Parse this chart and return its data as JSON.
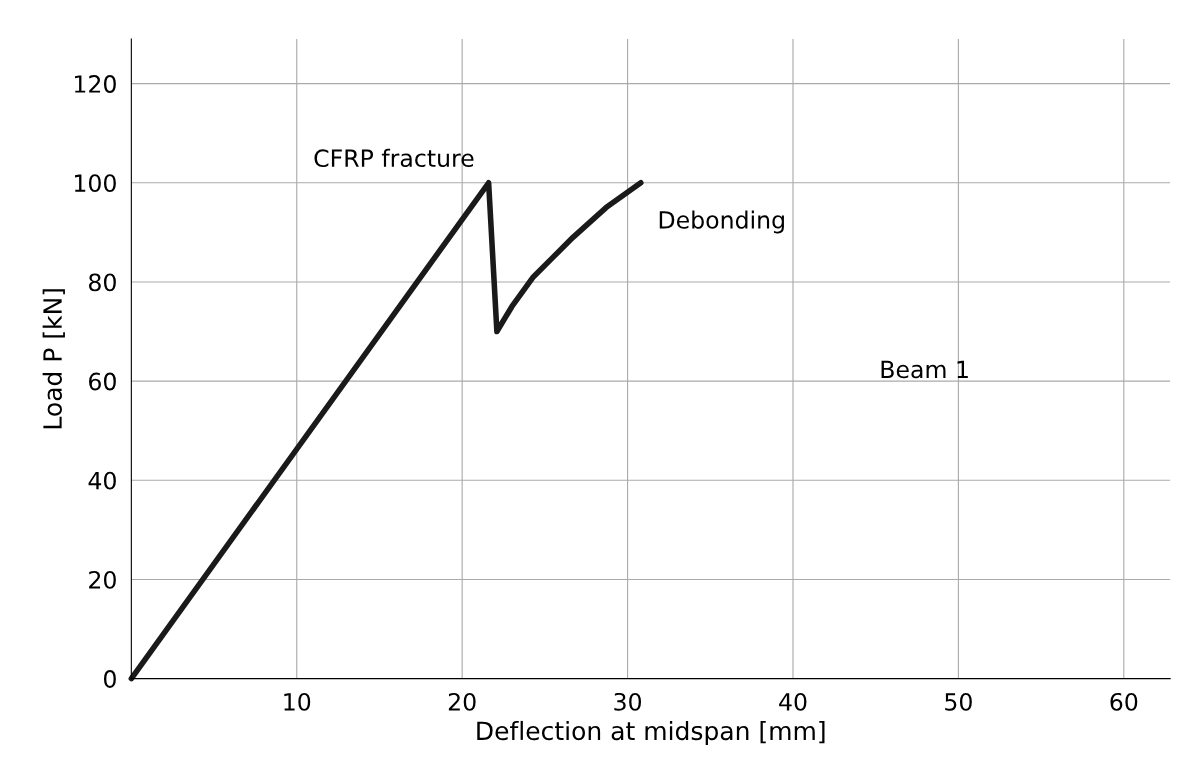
{
  "chart_data": {
    "type": "line",
    "xlabel": "Deflection at midspan [mm]",
    "ylabel": "Load P [kN]",
    "series": [
      {
        "color": "#1a1a1a",
        "x": [
          0,
          21.6,
          22.1,
          23.0,
          24.3,
          25.5,
          26.7,
          28.7,
          30.8
        ],
        "values": [
          0,
          100,
          70,
          75,
          81,
          85,
          89,
          95,
          100
        ]
      }
    ],
    "xlim": [
      0,
      62.8
    ],
    "ylim": [
      0,
      129
    ],
    "xticks": [
      10,
      20,
      30,
      40,
      50,
      60
    ],
    "yticks": [
      0,
      20,
      40,
      60,
      80,
      100,
      120
    ],
    "grid": true,
    "marker": "none",
    "line_style": "solid",
    "annotations": [
      {
        "text": "CFRP fracture",
        "x": 21.6,
        "y": 100
      },
      {
        "text": "Debonding",
        "x": 30.8,
        "y": 100
      },
      "Beam 1"
    ]
  }
}
